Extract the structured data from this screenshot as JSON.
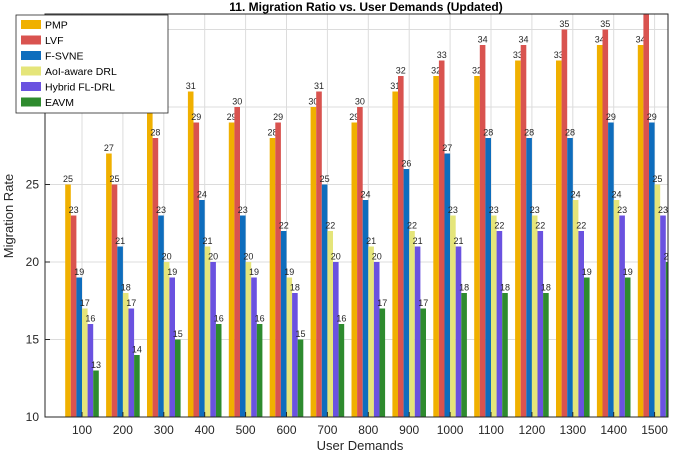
{
  "chart_data": {
    "type": "bar",
    "title": "11. Migration Ratio vs. User Demands (Updated)",
    "xlabel": "User Demands",
    "ylabel": "Migration Rate",
    "ylim": [
      10,
      36
    ],
    "yticks": [
      10,
      15,
      20,
      25,
      30,
      35
    ],
    "grid": true,
    "legend_position": "top-left",
    "categories": [
      "100",
      "200",
      "300",
      "400",
      "500",
      "600",
      "700",
      "800",
      "900",
      "1000",
      "1100",
      "1200",
      "1300",
      "1400",
      "1500"
    ],
    "series": [
      {
        "name": "PMP",
        "color": "#f0b000",
        "values": [
          25,
          27,
          30,
          31,
          29,
          28,
          30,
          29,
          31,
          32,
          32,
          33,
          33,
          34,
          34
        ]
      },
      {
        "name": "LVF",
        "color": "#d9534f",
        "values": [
          23,
          25,
          28,
          29,
          30,
          29,
          31,
          30,
          32,
          33,
          34,
          34,
          35,
          35,
          36
        ]
      },
      {
        "name": "F-SVNE",
        "color": "#0e6dbd",
        "values": [
          19,
          21,
          23,
          24,
          23,
          22,
          25,
          24,
          26,
          27,
          28,
          28,
          28,
          29,
          29
        ]
      },
      {
        "name": "AoI-aware DRL",
        "color": "#e5e57a",
        "values": [
          17,
          18,
          20,
          21,
          20,
          19,
          22,
          21,
          22,
          23,
          23,
          23,
          24,
          24,
          25
        ]
      },
      {
        "name": "Hybrid FL-DRL",
        "color": "#6a52e0",
        "values": [
          16,
          17,
          19,
          20,
          19,
          18,
          20,
          20,
          21,
          21,
          22,
          22,
          22,
          23,
          23
        ]
      },
      {
        "name": "EAVM",
        "color": "#2e8b2e",
        "values": [
          13,
          14,
          15,
          16,
          16,
          15,
          16,
          17,
          17,
          18,
          18,
          18,
          19,
          19,
          20
        ]
      }
    ]
  }
}
